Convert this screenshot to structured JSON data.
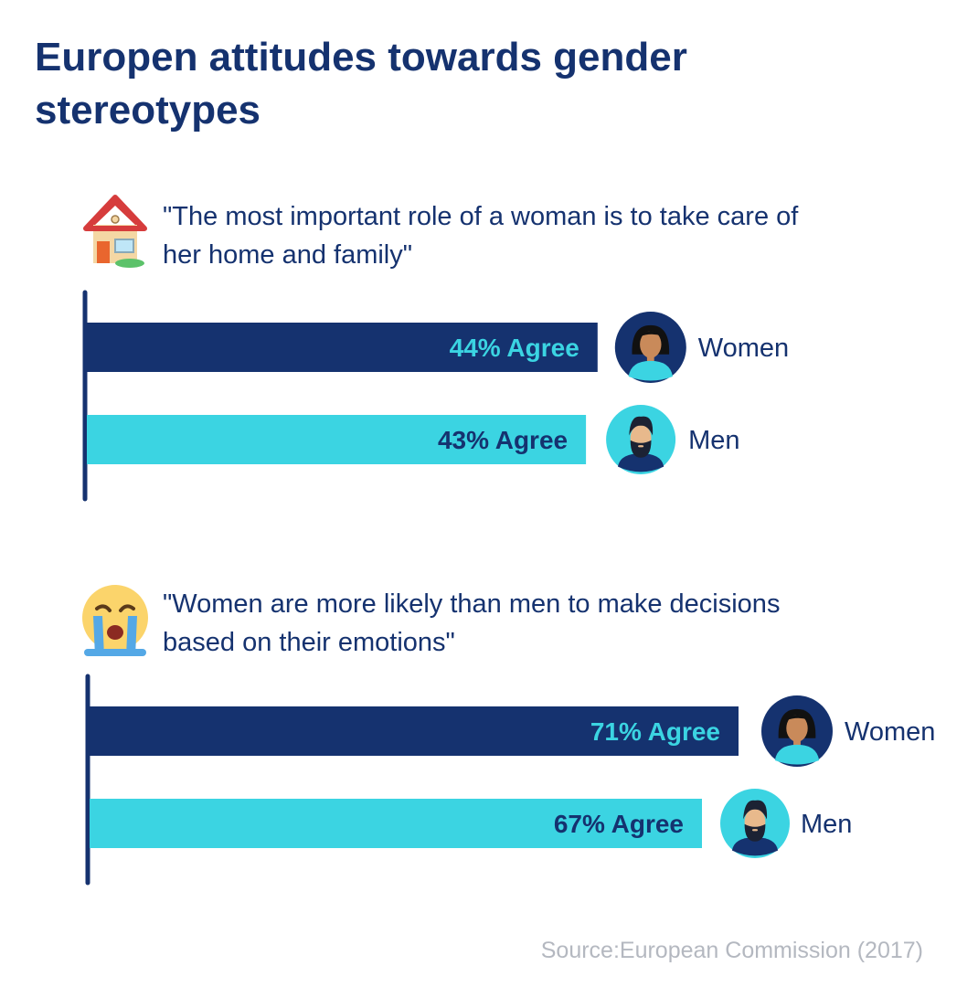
{
  "title": "Europen attitudes towards gender stereotypes",
  "source": "Source:European Commission (2017)",
  "colors": {
    "women": "#15326f",
    "men": "#3bd4e2",
    "women_label": "#3bd4e2",
    "men_label": "#15326f",
    "text": "#15326f",
    "source": "#b4b8c0"
  },
  "chart_data": [
    {
      "type": "bar",
      "orientation": "horizontal",
      "icon": "house-icon",
      "title": "\"The most important role of a woman is to take care of her home and family\"",
      "categories": [
        "Women",
        "Men"
      ],
      "values": [
        44,
        43
      ],
      "value_labels": [
        "44% Agree",
        "43% Agree"
      ],
      "unit": "%",
      "xlim": [
        0,
        100
      ]
    },
    {
      "type": "bar",
      "orientation": "horizontal",
      "icon": "crying-face-icon",
      "title": "\"Women are more likely than men to make decisions based on their emotions\"",
      "categories": [
        "Women",
        "Men"
      ],
      "values": [
        71,
        67
      ],
      "value_labels": [
        "71% Agree",
        "67% Agree"
      ],
      "unit": "%",
      "xlim": [
        0,
        100
      ]
    }
  ]
}
